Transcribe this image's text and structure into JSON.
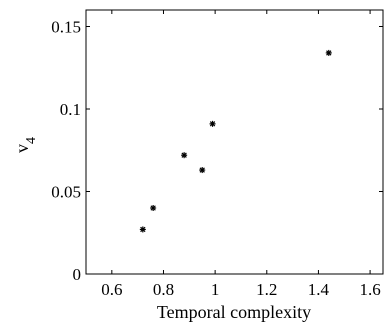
{
  "chart_data": {
    "type": "scatter",
    "title": "",
    "xlabel": "Temporal complexity",
    "ylabel": "v",
    "ylabel_subscript": "4",
    "xlim": [
      0.5,
      1.65
    ],
    "ylim": [
      0,
      0.16
    ],
    "xticks": [
      0.6,
      0.8,
      1.0,
      1.2,
      1.4,
      1.6
    ],
    "xtick_labels": [
      "0.6",
      "0.8",
      "1",
      "1.2",
      "1.4",
      "1.6"
    ],
    "yticks": [
      0,
      0.05,
      0.1,
      0.15
    ],
    "ytick_labels": [
      "0",
      "0.05",
      "0.1",
      "0.15"
    ],
    "grid": false,
    "marker": "*",
    "marker_color": "#000000",
    "points": [
      {
        "x": 0.72,
        "y": 0.027
      },
      {
        "x": 0.76,
        "y": 0.04
      },
      {
        "x": 0.88,
        "y": 0.072
      },
      {
        "x": 0.95,
        "y": 0.063
      },
      {
        "x": 0.99,
        "y": 0.091
      },
      {
        "x": 1.44,
        "y": 0.134
      }
    ]
  }
}
